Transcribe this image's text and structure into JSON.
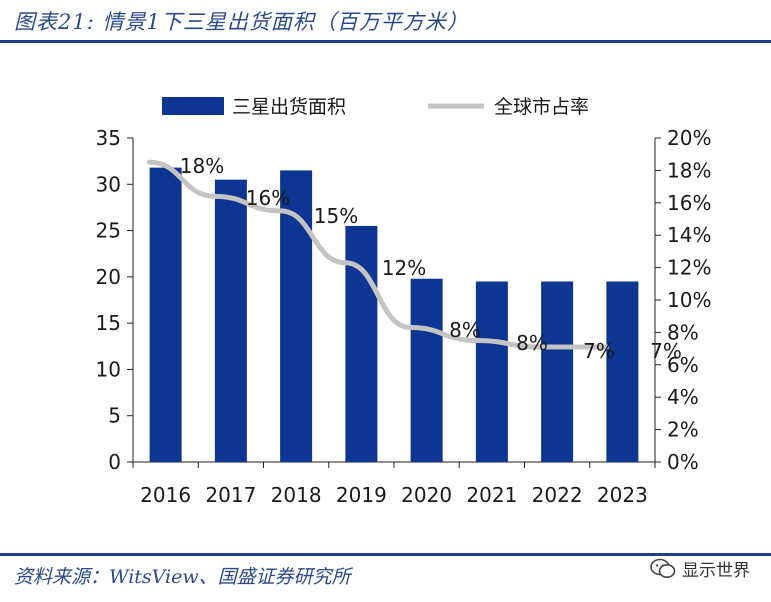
{
  "header": {
    "title": "图表21: 情景1下三星出货面积（百万平方米）"
  },
  "footer": {
    "source": "资料来源：WitsView、国盛证券研究所"
  },
  "watermark": {
    "text": "显示世界",
    "icon": "wechat-icon"
  },
  "colors": {
    "bar": "#0d3592",
    "line": "#c4c4c4",
    "rule": "#1f3f8a",
    "title": "#2a4a8c"
  },
  "chart_data": {
    "type": "bar",
    "title": "情景1下三星出货面积（百万平方米）",
    "categories": [
      "2016",
      "2017",
      "2018",
      "2019",
      "2020",
      "2021",
      "2022",
      "2023"
    ],
    "series": [
      {
        "name": "三星出货面积",
        "type": "bar",
        "axis": "left",
        "values": [
          31.8,
          30.5,
          31.5,
          25.5,
          19.8,
          19.5,
          19.5,
          19.5
        ]
      },
      {
        "name": "全球市占率",
        "type": "line",
        "axis": "right",
        "values": [
          18.5,
          16.4,
          15.5,
          12.3,
          8.3,
          7.5,
          7.1,
          7.1
        ],
        "labels": [
          "18%",
          "16%",
          "15%",
          "12%",
          "8%",
          "8%",
          "7%",
          "7%"
        ]
      }
    ],
    "y_left": {
      "ylim": [
        0,
        35
      ],
      "ticks": [
        "0",
        "5",
        "10",
        "15",
        "20",
        "25",
        "30",
        "35"
      ]
    },
    "y_right": {
      "ylim": [
        0,
        20
      ],
      "ticks": [
        "0%",
        "2%",
        "4%",
        "6%",
        "8%",
        "10%",
        "12%",
        "14%",
        "16%",
        "18%",
        "20%"
      ]
    },
    "legend": {
      "position": "top",
      "items": [
        "三星出货面积",
        "全球市占率"
      ]
    },
    "grid": false
  }
}
